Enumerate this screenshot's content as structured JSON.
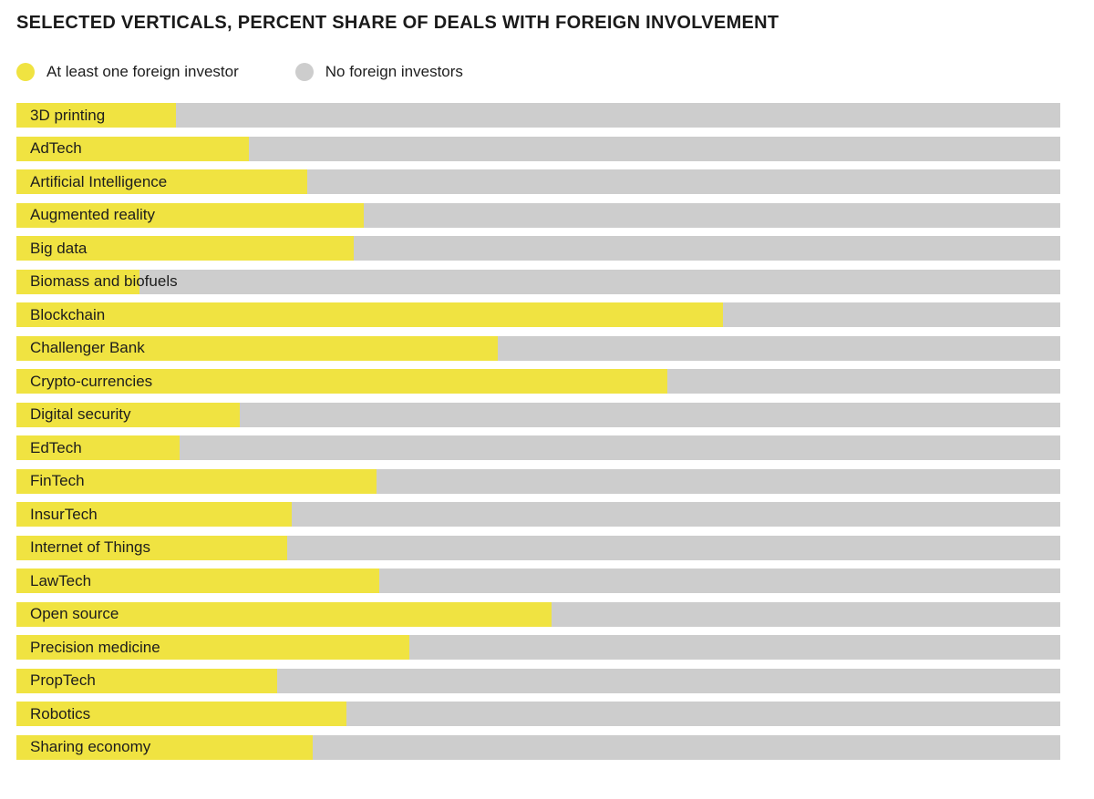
{
  "title": "SELECTED VERTICALS, PERCENT SHARE OF DEALS WITH FOREIGN INVOLVEMENT",
  "colors": {
    "foreign": "#F0E341",
    "no_foreign": "#CDCDCD",
    "text": "#1d1d1d",
    "title_text": "#1a1a1a",
    "background": "#ffffff"
  },
  "legend": [
    {
      "label": "At least one foreign investor",
      "color": "#F0E341"
    },
    {
      "label": "No foreign investors",
      "color": "#CDCDCD"
    }
  ],
  "chart_data": {
    "type": "bar",
    "orientation": "horizontal",
    "stacked": true,
    "title": "SELECTED VERTICALS, PERCENT SHARE OF DEALS WITH FOREIGN INVOLVEMENT",
    "xlabel": "",
    "ylabel": "",
    "xlim": [
      0,
      100
    ],
    "value_unit": "percent",
    "grid": false,
    "legend_position": "top-left",
    "labels_position": "inside-left",
    "categories": [
      "3D printing",
      "AdTech",
      "Artificial Intelligence",
      "Augmented reality",
      "Big data",
      "Biomass and biofuels",
      "Blockchain",
      "Challenger Bank",
      "Crypto-currencies",
      "Digital security",
      "EdTech",
      "FinTech",
      "InsurTech",
      "Internet of Things",
      "LawTech",
      "Open source",
      "Precision medicine",
      "PropTech",
      "Robotics",
      "Sharing economy"
    ],
    "series": [
      {
        "name": "At least one foreign investor",
        "color": "#F0E341",
        "values": [
          15.3,
          22.3,
          27.9,
          33.3,
          32.3,
          11.8,
          67.7,
          46.1,
          62.4,
          21.4,
          15.6,
          34.5,
          26.4,
          25.9,
          34.8,
          51.3,
          37.6,
          25.0,
          31.6,
          28.4
        ]
      },
      {
        "name": "No foreign investors",
        "color": "#CDCDCD",
        "values": [
          84.7,
          77.7,
          72.1,
          66.7,
          67.7,
          88.2,
          32.3,
          53.9,
          37.6,
          78.6,
          84.4,
          65.5,
          73.6,
          74.1,
          65.2,
          48.7,
          62.4,
          75.0,
          68.4,
          71.6
        ]
      }
    ]
  }
}
